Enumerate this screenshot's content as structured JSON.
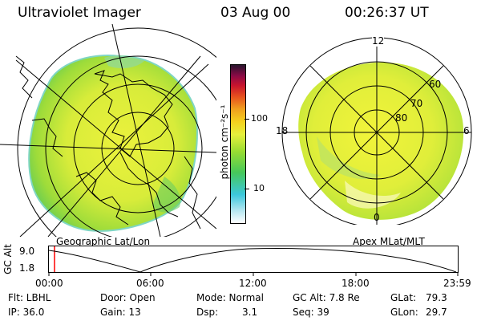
{
  "header": {
    "instrument": "Ultraviolet Imager",
    "date": "03 Aug 00",
    "time": "00:26:37 UT"
  },
  "left_panel": {
    "label": "Geographic Lat/Lon"
  },
  "right_panel": {
    "label": "Apex MLat/MLT",
    "mlt_labels": {
      "top": "12",
      "left": "18",
      "right": "6",
      "bottom": "0"
    },
    "lat_labels": [
      "60",
      "70",
      "80"
    ]
  },
  "colorbar": {
    "unit_label": "photon cm⁻²s⁻¹",
    "ticks": [
      "100",
      "10"
    ],
    "scale": "log",
    "colors": [
      "#ffffff",
      "#b4e6f0",
      "#3cc8dc",
      "#46c85a",
      "#96dc32",
      "#e6f03c",
      "#f5d21e",
      "#f0a01e",
      "#e6501e",
      "#c8142d",
      "#8c0a46",
      "#28142d"
    ]
  },
  "altitude_plot": {
    "ylabel": "GC Alt",
    "yticks": [
      "9.0",
      "1.8"
    ],
    "xticks": [
      "00:00",
      "06:00",
      "12:00",
      "18:00",
      "23:59"
    ],
    "current_marker_color": "#ff0000"
  },
  "info": {
    "filter": "Flt: LBHL",
    "ip": "IP: 36.0",
    "door": "Door: Open",
    "gain": "Gain: 13",
    "mode": "Mode: Normal",
    "dsp_label": "Dsp:",
    "dsp_value": "3.1",
    "gc_alt": "GC Alt: 7.8 Re",
    "seq": "Seq: 39",
    "glat_label": "GLat:",
    "glat_value": "79.3",
    "glon_label": "GLon:",
    "glon_value": "29.7"
  }
}
